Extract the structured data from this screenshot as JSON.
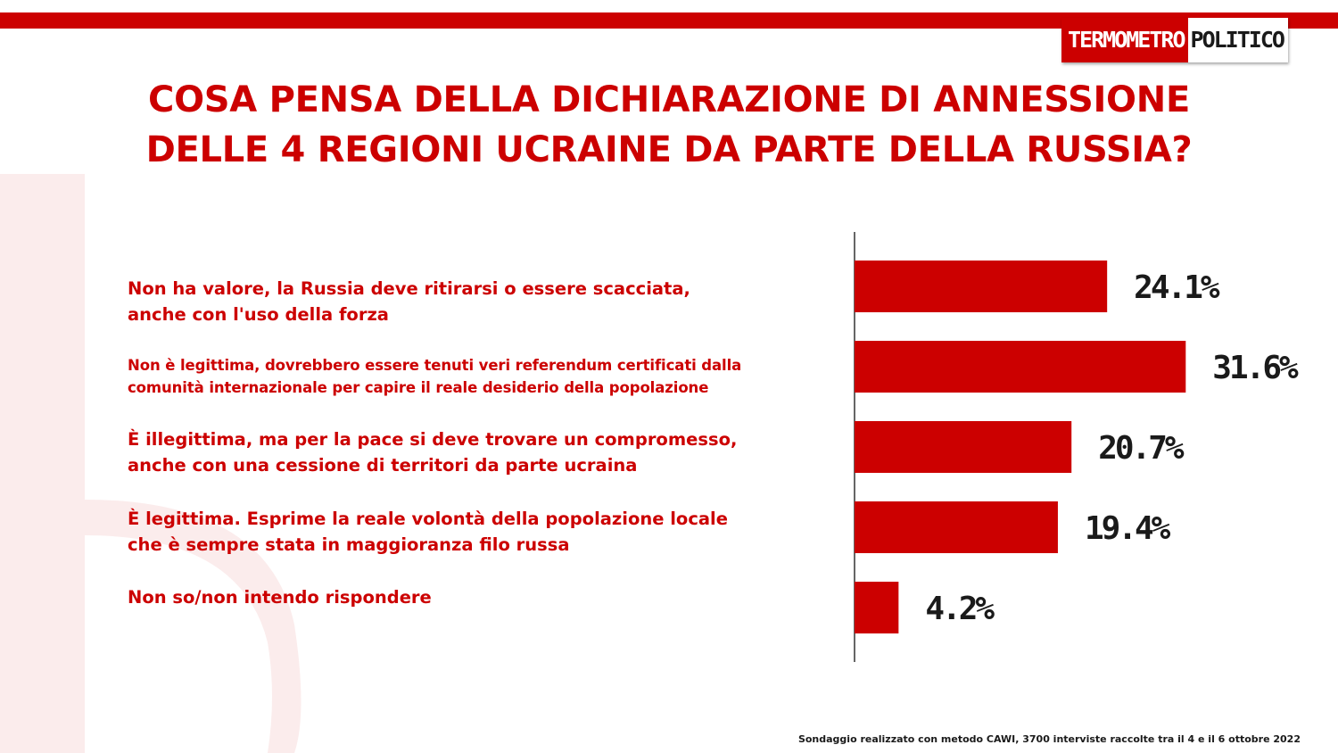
{
  "brand": {
    "logo_part1": "TERMOMETRO",
    "logo_part2": "POLITICO",
    "accent_color": "#cc0000"
  },
  "title_lines": [
    "COSA PENSA DELLA DICHIARAZIONE DI ANNESSIONE",
    "DELLE 4 REGIONI UCRAINE DA PARTE DELLA RUSSIA?"
  ],
  "footnote": "Sondaggio realizzato con metodo CAWI, 3700 interviste raccolte tra il 4 e il 6 ottobre 2022",
  "chart_data": {
    "type": "bar",
    "orientation": "horizontal",
    "title": "COSA PENSA DELLA DICHIARAZIONE DI ANNESSIONE DELLE 4 REGIONI UCRAINE DA PARTE DELLA RUSSIA?",
    "xlabel": "",
    "ylabel": "",
    "categories": [
      "Non ha valore, la Russia deve ritirarsi o essere scacciata,\nanche con l'uso della forza",
      "Non è legittima, dovrebbero essere tenuti veri referendum certificati dalla\ncomunità  internazionale per capire il reale desiderio della popolazione",
      "È illegittima, ma per la pace si deve trovare un compromesso,\nanche con una cessione di territori da parte ucraina",
      "È legittima. Esprime la reale volontà  della popolazione locale\nche è sempre stata in maggioranza filo russa",
      "Non so/non intendo rispondere"
    ],
    "values": [
      24.1,
      31.6,
      20.7,
      19.4,
      4.2
    ],
    "value_labels": [
      "24.1%",
      "31.6%",
      "20.7%",
      "19.4%",
      "4.2%"
    ],
    "unit": "%",
    "bar_color": "#cc0000",
    "grid": false,
    "legend": "none"
  }
}
